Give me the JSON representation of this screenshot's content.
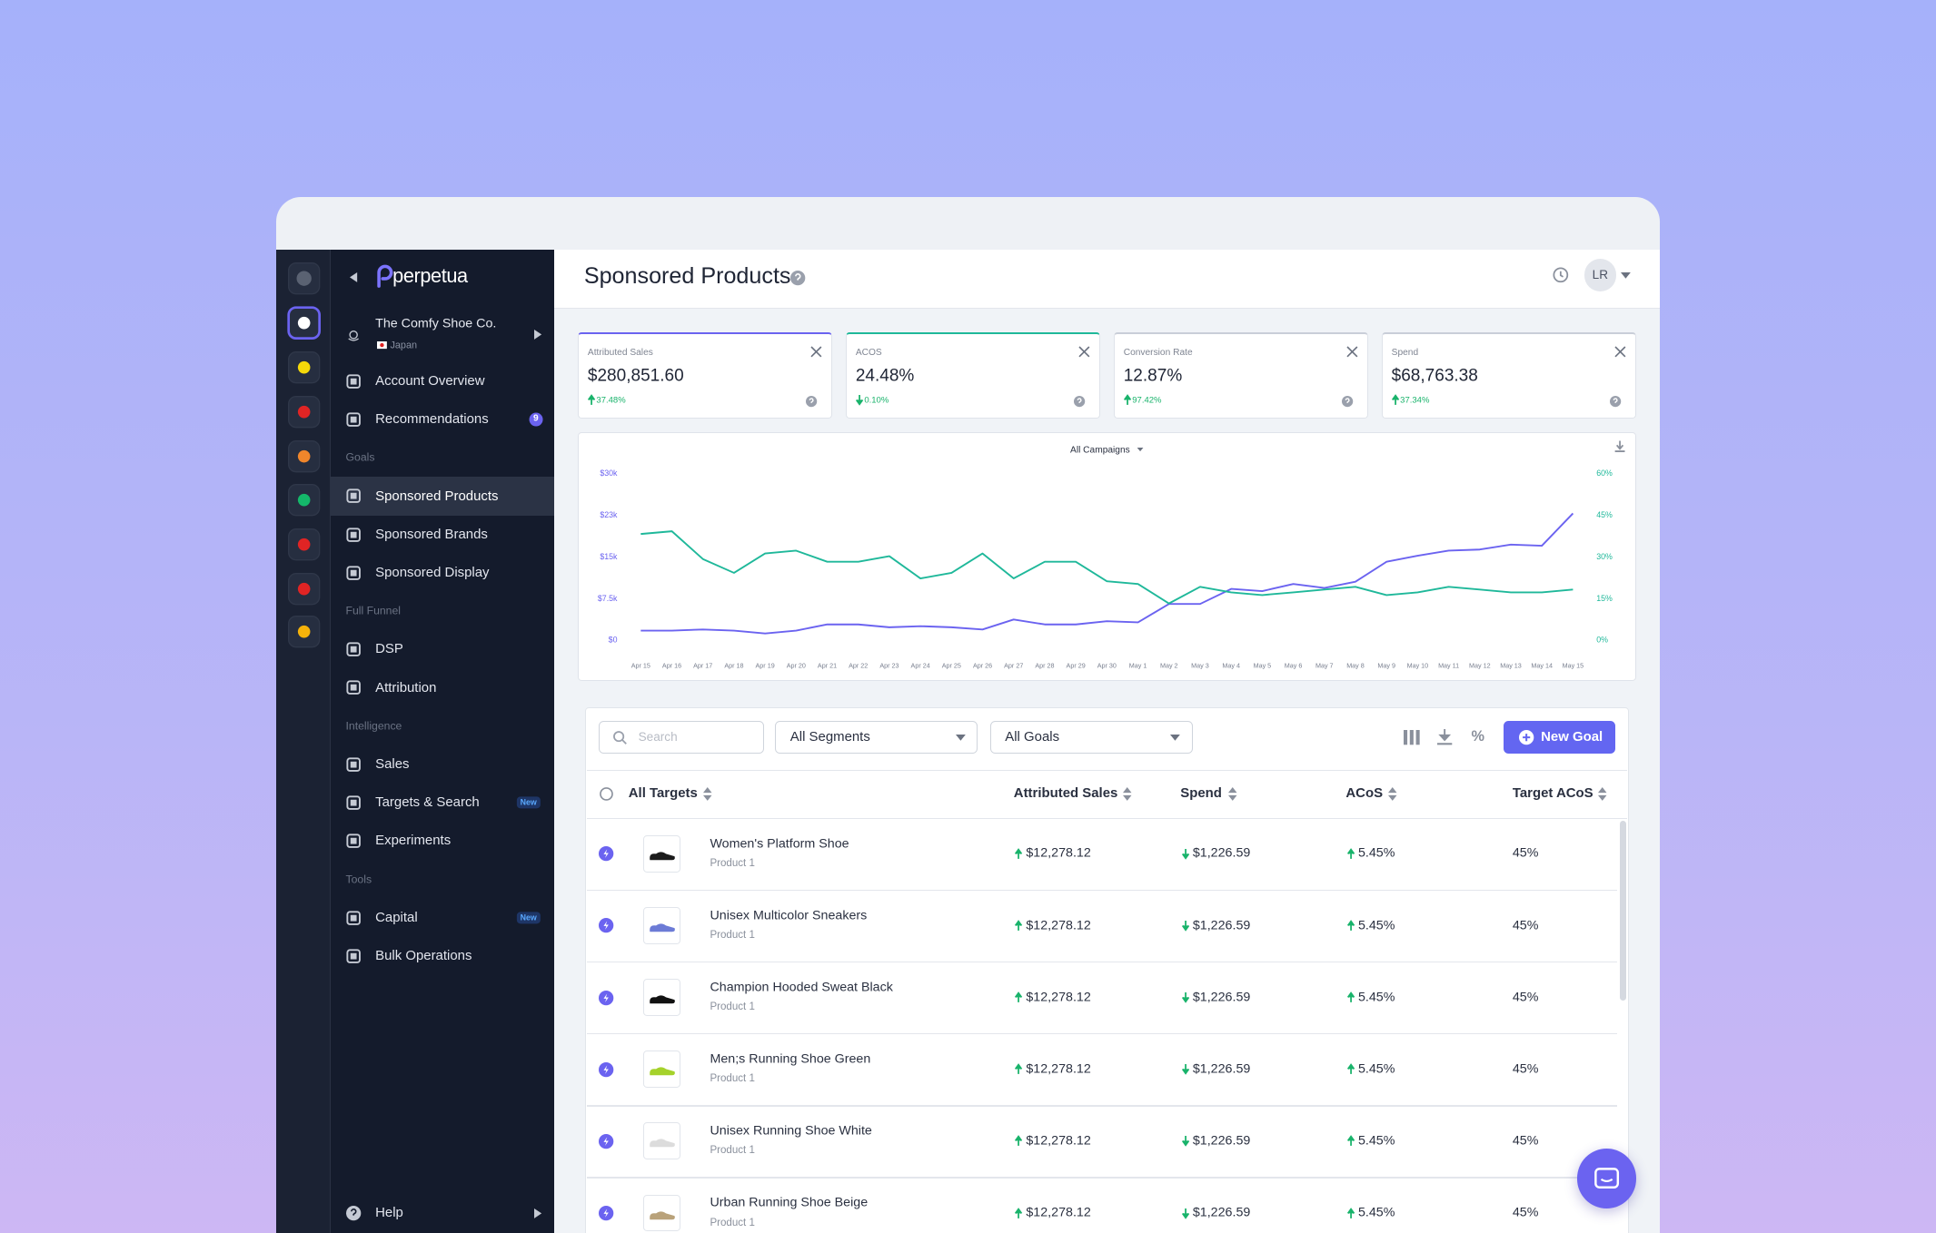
{
  "sidebar": {
    "brand": "perpetua",
    "account": {
      "name": "The Comfy Shoe Co.",
      "region": "Japan"
    },
    "nav": [
      {
        "label": "Account Overview"
      },
      {
        "label": "Recommendations",
        "badge": "9"
      },
      {
        "heading": "Goals"
      },
      {
        "label": "Sponsored Products",
        "active": true
      },
      {
        "label": "Sponsored Brands"
      },
      {
        "label": "Sponsored Display"
      },
      {
        "heading": "Full Funnel"
      },
      {
        "label": "DSP"
      },
      {
        "label": "Attribution"
      },
      {
        "heading": "Intelligence"
      },
      {
        "label": "Sales"
      },
      {
        "label": "Targets & Search",
        "badge": "New"
      },
      {
        "label": "Experiments"
      },
      {
        "heading": "Tools"
      },
      {
        "label": "Capital",
        "badge": "New"
      },
      {
        "label": "Bulk Operations"
      }
    ],
    "help": "Help"
  },
  "header": {
    "title": "Sponsored Products",
    "avatar": "LR"
  },
  "kpis": [
    {
      "label": "Attributed Sales",
      "value": "$280,851.60",
      "change": "37.48%",
      "trend": "up",
      "color": "#6b63f0"
    },
    {
      "label": "ACOS",
      "value": "24.48%",
      "change": "0.10%",
      "trend": "down",
      "color": "#1fb89a"
    },
    {
      "label": "Conversion Rate",
      "value": "12.87%",
      "change": "97.42%",
      "trend": "up",
      "color": "#c9ced8"
    },
    {
      "label": "Spend",
      "value": "$68,763.38",
      "change": "37.34%",
      "trend": "up",
      "color": "#c9ced8"
    }
  ],
  "chart_data": {
    "type": "line",
    "filter": "All Campaigns",
    "categories": [
      "Apr 15",
      "Apr 16",
      "Apr 17",
      "Apr 18",
      "Apr 19",
      "Apr 20",
      "Apr 21",
      "Apr 22",
      "Apr 23",
      "Apr 24",
      "Apr 25",
      "Apr 26",
      "Apr 27",
      "Apr 28",
      "Apr 29",
      "Apr 30",
      "May 1",
      "May 2",
      "May 3",
      "May 4",
      "May 5",
      "May 6",
      "May 7",
      "May 8",
      "May 9",
      "May 10",
      "May 11",
      "May 12",
      "May 13",
      "May 14",
      "May 15"
    ],
    "ylim": [
      0,
      30000
    ],
    "yticks": [
      {
        "value": 0,
        "label": "$0"
      },
      {
        "value": 7500,
        "label": "$7.5k"
      },
      {
        "value": 15000,
        "label": "$15k"
      },
      {
        "value": 22500,
        "label": "$23k"
      },
      {
        "value": 30000,
        "label": "$30k"
      }
    ],
    "y2lim": [
      0,
      60
    ],
    "y2ticks": [
      {
        "value": 0,
        "label": "0%"
      },
      {
        "value": 15,
        "label": "15%"
      },
      {
        "value": 30,
        "label": "30%"
      },
      {
        "value": 45,
        "label": "45%"
      },
      {
        "value": 60,
        "label": "60%"
      }
    ],
    "series": [
      {
        "color": "#6b63f0",
        "values": [
          1600,
          1600,
          1800,
          1600,
          1100,
          1600,
          2700,
          2700,
          2200,
          2400,
          2200,
          1800,
          3600,
          2700,
          2700,
          3300,
          3100,
          6400,
          6400,
          9100,
          8700,
          10000,
          9300,
          10400,
          14000,
          15100,
          16000,
          16200,
          17100,
          16900,
          22700
        ]
      },
      {
        "color": "#1fb89a",
        "axis": "y2",
        "values": [
          38,
          39,
          29,
          24,
          31,
          32,
          28,
          28,
          30,
          22,
          24,
          31,
          22,
          28,
          28,
          21,
          20,
          13,
          19,
          17,
          16,
          17,
          18,
          19,
          16,
          17,
          19,
          18,
          17,
          17,
          18
        ]
      }
    ]
  },
  "table": {
    "search_placeholder": "Search",
    "filters": [
      "All Segments",
      "All Goals"
    ],
    "percent_toggle": "%",
    "button": "New Goal",
    "columns": [
      "All Targets",
      "Attributed Sales",
      "Spend",
      "ACoS",
      "Target ACoS"
    ],
    "trends": [
      "up",
      "down",
      "up"
    ],
    "rows": [
      [
        "Women's Platform Shoe",
        "Product 1",
        "$12,278.12",
        "$1,226.59",
        "5.45%",
        "45%"
      ],
      [
        "Unisex Multicolor Sneakers",
        "Product 1",
        "$12,278.12",
        "$1,226.59",
        "5.45%",
        "45%"
      ],
      [
        "Champion Hooded Sweat Black",
        "Product 1",
        "$12,278.12",
        "$1,226.59",
        "5.45%",
        "45%"
      ],
      [
        "Men;s Running Shoe Green",
        "Product 1",
        "$12,278.12",
        "$1,226.59",
        "5.45%",
        "45%"
      ],
      [
        "Unisex Running Shoe White",
        "Product 1",
        "$12,278.12",
        "$1,226.59",
        "5.45%",
        "45%"
      ],
      [
        "Urban Running Shoe Beige",
        "Product 1",
        "$12,278.12",
        "$1,226.59",
        "5.45%",
        "45%"
      ]
    ]
  }
}
